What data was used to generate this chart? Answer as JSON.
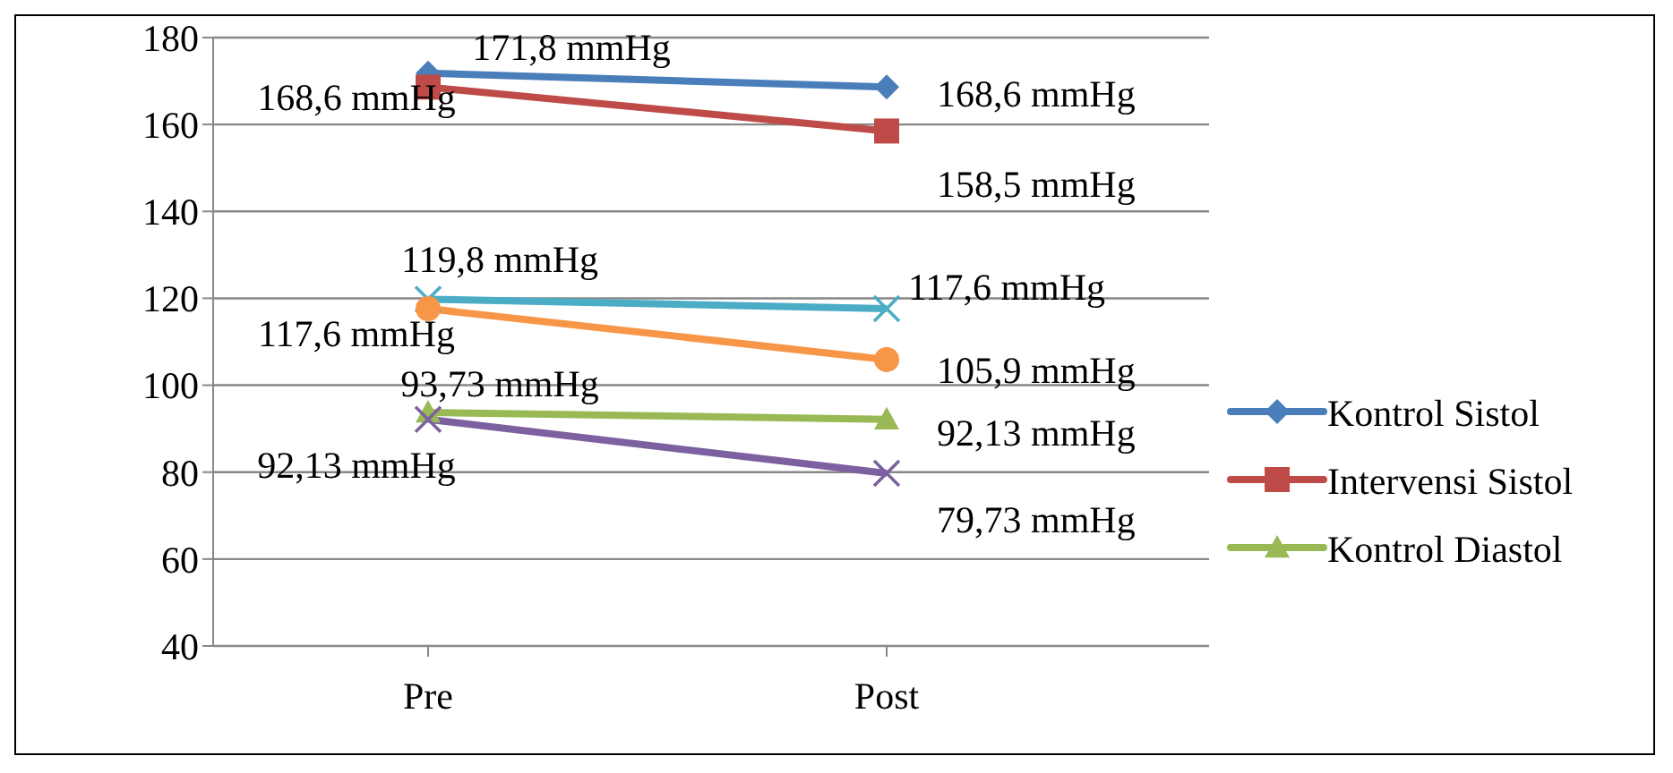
{
  "chart_data": {
    "type": "line",
    "categories": [
      "Pre",
      "Post"
    ],
    "series": [
      {
        "name": "Kontrol Sistol",
        "color": "#4a7ebb",
        "marker": "diamond",
        "values": [
          171.8,
          168.6
        ],
        "value_labels": [
          "171,8 mmHg",
          "168,6 mmHg"
        ]
      },
      {
        "name": "Intervensi Sistol",
        "color": "#be4b48",
        "marker": "square",
        "values": [
          168.6,
          158.5
        ],
        "value_labels": [
          "168,6 mmHg",
          "158,5 mmHg"
        ]
      },
      {
        "name": "Kontrol Diastol",
        "color": "#98b954",
        "marker": "triangle",
        "values": [
          93.73,
          92.13
        ],
        "value_labels": [
          "93,73 mmHg",
          "92,13 mmHg"
        ]
      },
      {
        "color": "#4bacc6",
        "marker": "cross",
        "values": [
          119.8,
          117.6
        ],
        "value_labels": [
          "119,8 mmHg",
          "117,6 mmHg"
        ]
      },
      {
        "color": "#f79646",
        "marker": "circle",
        "values": [
          117.6,
          105.9
        ],
        "value_labels": [
          "117,6 mmHg",
          "105,9 mmHg"
        ]
      },
      {
        "color": "#7d60a0",
        "marker": "cross",
        "values": [
          92.13,
          79.73
        ],
        "value_labels": [
          "92,13 mmHg",
          "79,73 mmHg"
        ]
      }
    ],
    "ylim": [
      40,
      180
    ],
    "yticks": [
      40,
      60,
      80,
      100,
      120,
      140,
      160,
      180
    ],
    "grid": "y",
    "legend": "right",
    "line_style": "solid"
  }
}
